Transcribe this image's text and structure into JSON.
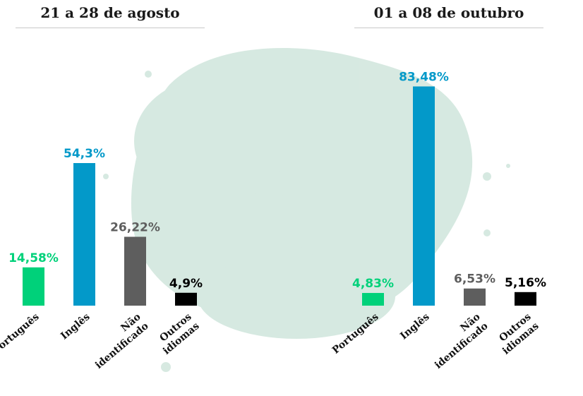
{
  "colors": {
    "portugues": "#00d17a",
    "ingles": "#0399c9",
    "nao_identificado": "#5e5e5e",
    "outros": "#000000",
    "splash": "#c9e2d7"
  },
  "panels": {
    "left_title": "21 a 28 de agosto",
    "right_title": "01 a 08 de outubro"
  },
  "chart_data": [
    {
      "type": "bar",
      "title": "21 a 28 de agosto",
      "categories": [
        "Português",
        "Inglês",
        "Não identificado",
        "Outros idiomas"
      ],
      "category_lines": [
        [
          "Português"
        ],
        [
          "Inglês"
        ],
        [
          "Não",
          "identificado"
        ],
        [
          "Outros",
          "idiomas"
        ]
      ],
      "values": [
        14.58,
        54.3,
        26.22,
        4.9
      ],
      "value_labels": [
        "14,58%",
        "54,3%",
        "26,22%",
        "4,9%"
      ],
      "ylim": [
        0,
        100
      ],
      "grid": false
    },
    {
      "type": "bar",
      "title": "01 a 08 de outubro",
      "categories": [
        "Português",
        "Inglês",
        "Não identificado",
        "Outros idiomas"
      ],
      "category_lines": [
        [
          "Português"
        ],
        [
          "Inglês"
        ],
        [
          "Não",
          "identificado"
        ],
        [
          "Outros",
          "idiomas"
        ]
      ],
      "values": [
        4.83,
        83.48,
        6.53,
        5.16
      ],
      "value_labels": [
        "4,83%",
        "83,48%",
        "6,53%",
        "5,16%"
      ],
      "ylim": [
        0,
        100
      ],
      "grid": false
    }
  ]
}
